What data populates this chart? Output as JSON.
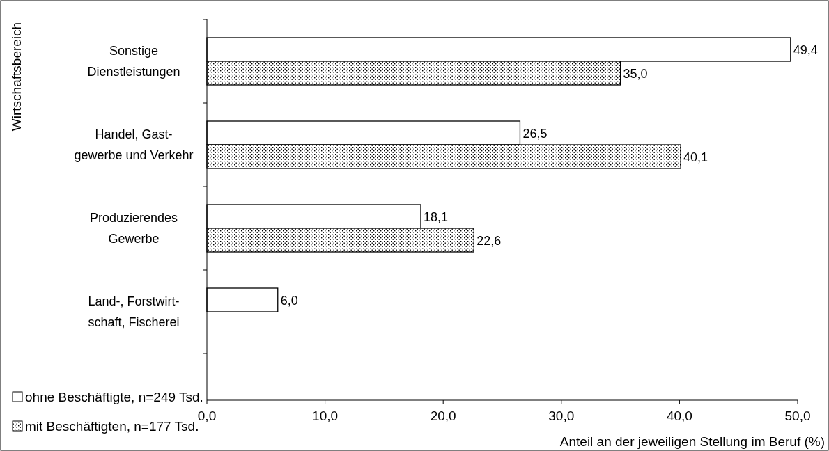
{
  "chart_data": {
    "type": "bar",
    "orientation": "horizontal",
    "ylabel": "Wirtschaftsbereich",
    "xlabel": "Anteil an der jeweiligen Stellung im Beruf (%)",
    "categories": [
      "Sonstige\nDienstleistungen",
      "Handel, Gast-\ngewerbe und Verkehr",
      "Produzierendes\nGewerbe",
      "Land-, Forstwirt-\nschaft, Fischerei"
    ],
    "series": [
      {
        "name": "ohne Beschäftigte, n=249 Tsd.",
        "color": "#ffffff",
        "values": [
          49.4,
          26.5,
          18.1,
          6.0
        ],
        "value_labels": [
          "49,4",
          "26,5",
          "18,1",
          "6,0"
        ]
      },
      {
        "name": "mit Beschäftigten, n=177 Tsd.",
        "color": "#000000",
        "values": [
          35.0,
          40.1,
          22.6,
          null
        ],
        "value_labels": [
          "35,0",
          "40,1",
          "22,6",
          null
        ]
      }
    ],
    "xlim": [
      0,
      50
    ],
    "xticks": [
      {
        "value": 0,
        "label": "0,0"
      },
      {
        "value": 10,
        "label": "10,0"
      },
      {
        "value": 20,
        "label": "20,0"
      },
      {
        "value": 30,
        "label": "30,0"
      },
      {
        "value": 40,
        "label": "40,0"
      },
      {
        "value": 50,
        "label": "50,0"
      }
    ],
    "legend": "bottom left",
    "grid": false
  }
}
